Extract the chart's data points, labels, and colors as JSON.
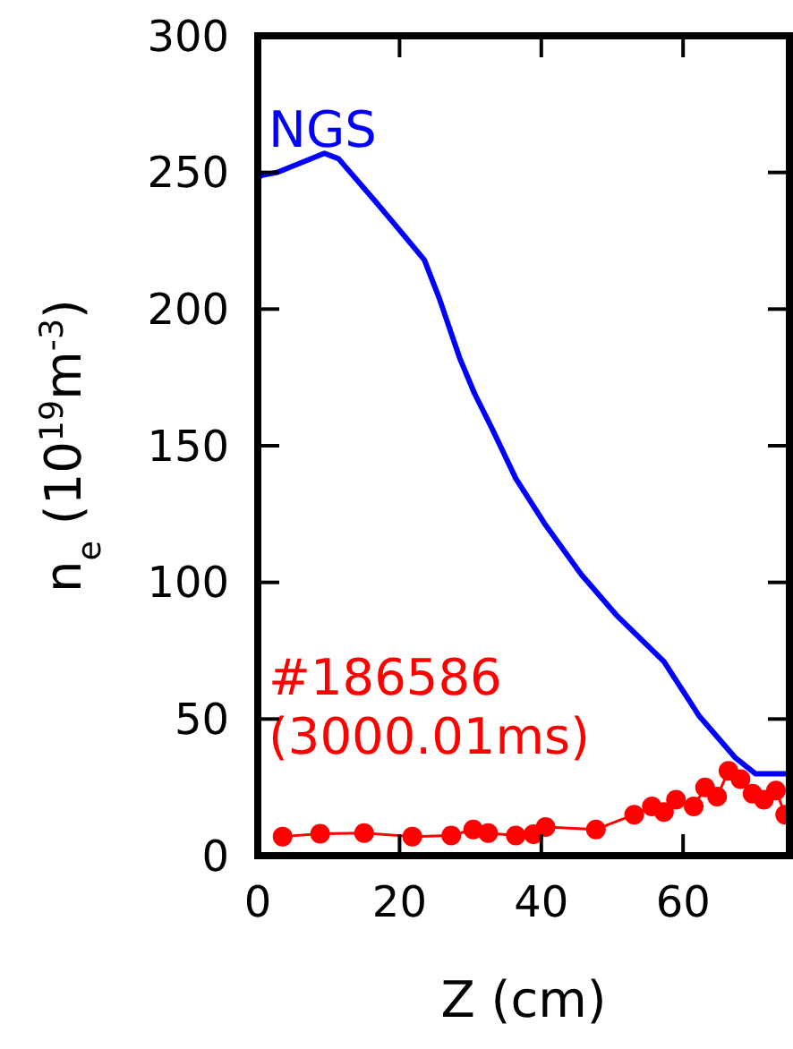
{
  "chart_data": {
    "type": "line",
    "xlabel": "Z (cm)",
    "ylabel": "n$_{e}$ (10$^{19}$m$^{-3}$)",
    "xlim": [
      0,
      75
    ],
    "xticks": [
      0,
      20,
      40,
      60
    ],
    "ylim": [
      0,
      300
    ],
    "yticks": [
      0,
      50,
      100,
      150,
      200,
      250,
      300
    ],
    "grid": false,
    "series": [
      {
        "name": "NGS",
        "color": "#0000ff",
        "marker": "none",
        "x": [
          0,
          0.6,
          2.7,
          9.4,
          11.4,
          16.4,
          19,
          23.5,
          25.6,
          28.5,
          30.6,
          33.1,
          36.4,
          40.6,
          45.6,
          50.6,
          57.3,
          62.3,
          67.3,
          70.2,
          75
        ],
        "values": [
          248,
          249,
          250,
          257,
          255,
          240,
          232,
          218,
          204,
          182,
          169,
          156,
          138,
          121,
          103,
          88,
          71,
          51,
          36,
          30,
          30
        ]
      },
      {
        "name": "#186586 (3000.01ms)",
        "color": "#ff0000",
        "marker": "circle",
        "x": [
          3.5,
          8.8,
          15,
          21.8,
          27.3,
          30.4,
          32.5,
          36.4,
          38.9,
          40.6,
          47.7,
          53.1,
          55.6,
          57.3,
          59,
          61.5,
          63.1,
          64.8,
          66.4,
          68.1,
          69.8,
          71.4,
          73.1,
          74.4
        ],
        "values": [
          7,
          8,
          8.3,
          7,
          7.4,
          9.6,
          8.3,
          7.4,
          7.9,
          10.5,
          9.6,
          15,
          18,
          16,
          20.5,
          18,
          25,
          21.6,
          31,
          28,
          22.7,
          20.5,
          23.8,
          15
        ]
      }
    ]
  }
}
